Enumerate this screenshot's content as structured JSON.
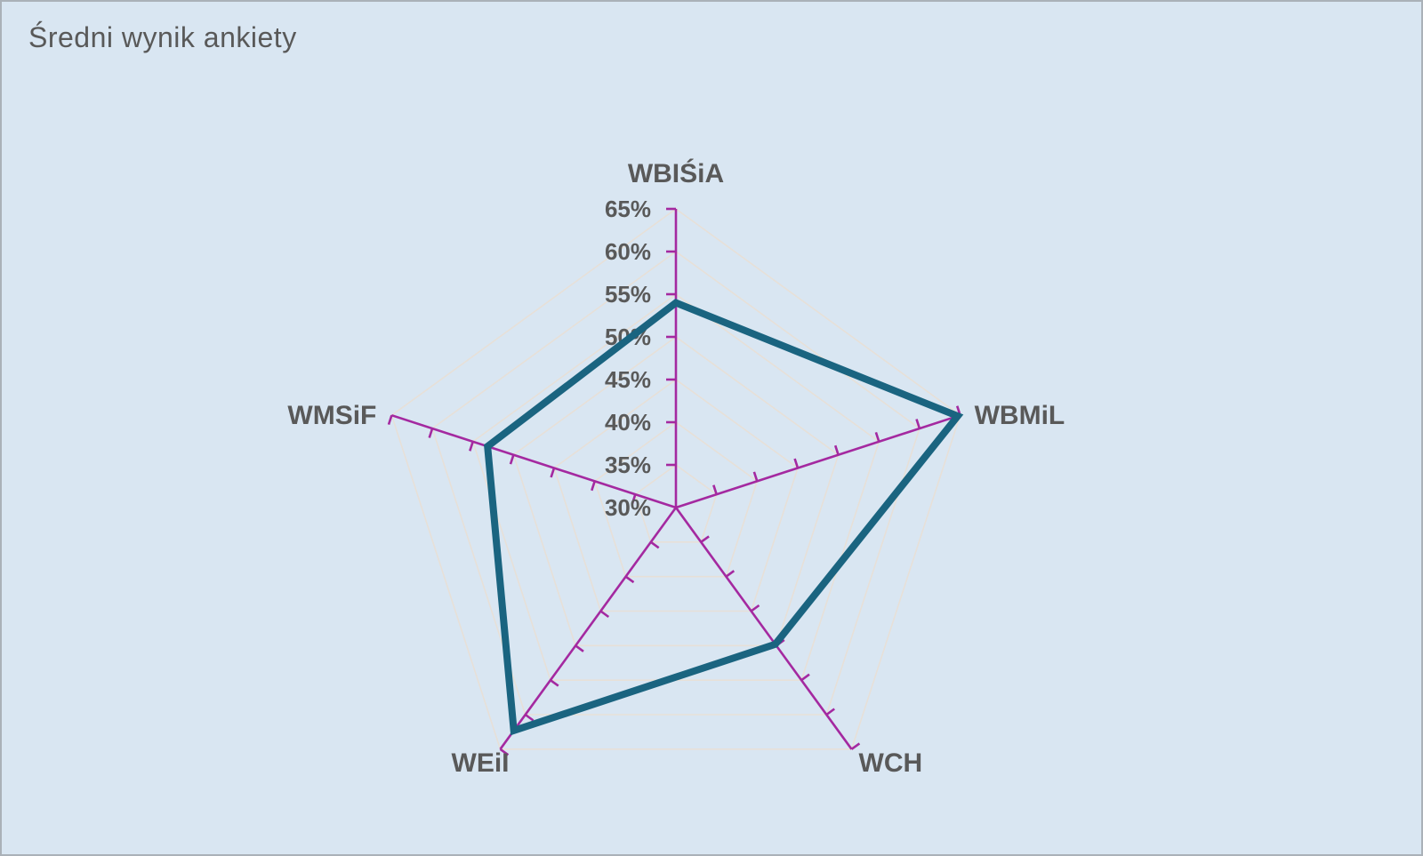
{
  "title": "Średni wynik ankiety",
  "colors": {
    "background": "#d9e6f2",
    "border": "#aab1b8",
    "axis": "#a429a0",
    "grid": "#e7e0d8",
    "series": "#1a6480",
    "text": "#595959"
  },
  "chart_data": {
    "type": "radar",
    "title": "Średni wynik ankiety",
    "categories": [
      "WBIŚiA",
      "WBMiL",
      "WCH",
      "WEiI",
      "WMSiF"
    ],
    "series": [
      {
        "name": "Średni wynik ankiety",
        "values": [
          54.0,
          64.7,
          49.8,
          62.3,
          53.2
        ]
      }
    ],
    "unit": "%",
    "radial_min": 30,
    "radial_max": 65,
    "radial_step": 5,
    "tick_labels": [
      "30%",
      "35%",
      "40%",
      "45%",
      "50%",
      "55%",
      "60%",
      "65%"
    ],
    "grid": true,
    "legend": "none"
  }
}
